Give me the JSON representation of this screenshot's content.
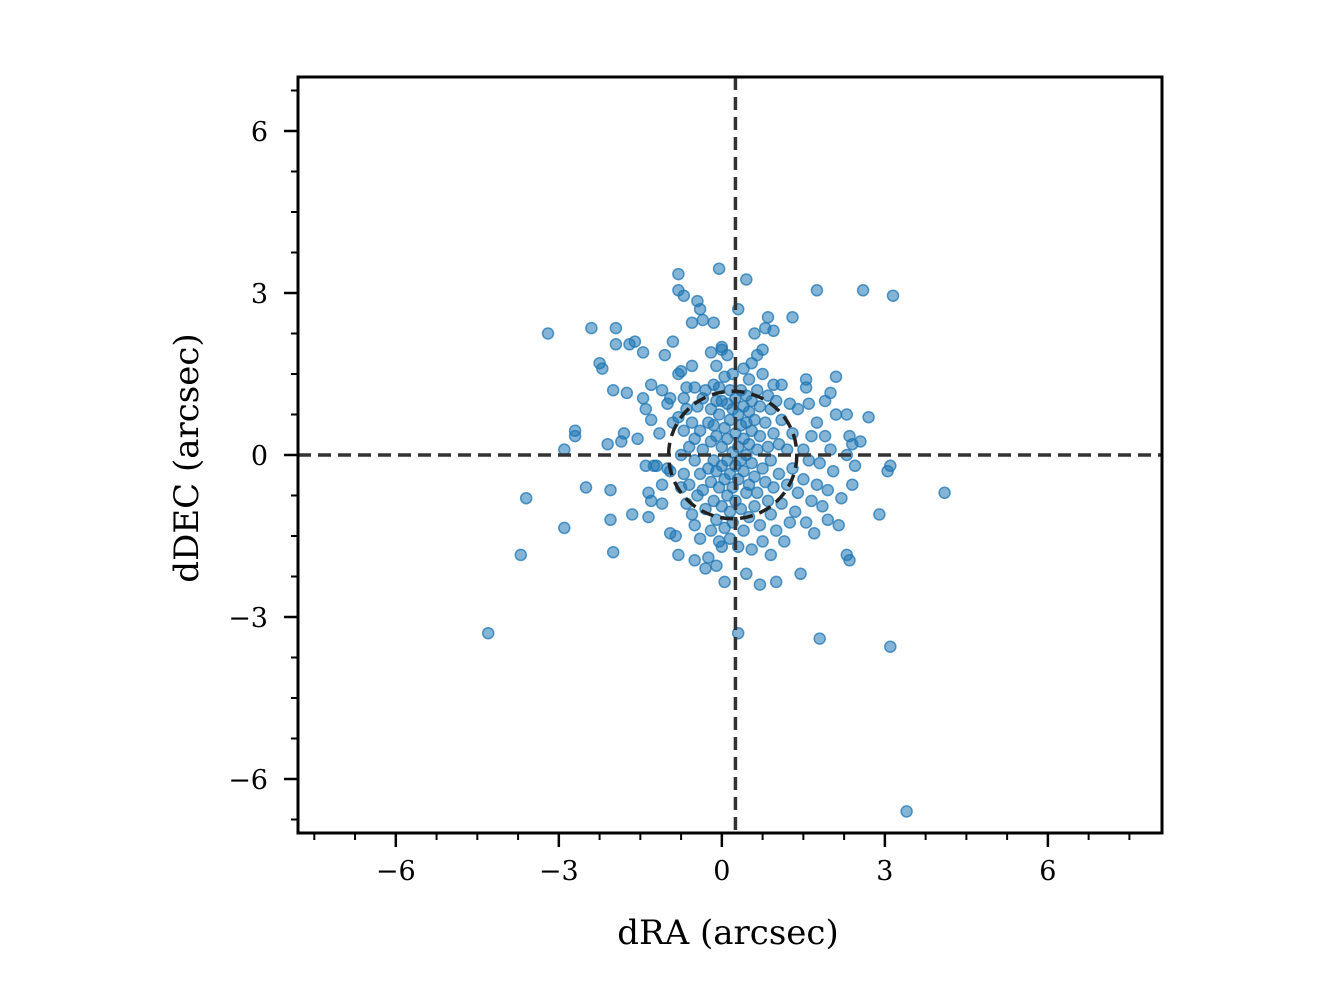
{
  "chart_data": {
    "type": "scatter",
    "xlabel": "dRA (arcsec)",
    "ylabel": "dDEC (arcsec)",
    "xlim": [
      -7.8,
      8.1
    ],
    "ylim": [
      -7.0,
      7.0
    ],
    "x_ticks": [
      -6,
      -3,
      0,
      3,
      6
    ],
    "y_ticks": [
      -6,
      -3,
      0,
      3,
      6
    ],
    "x_tick_labels": [
      "−6",
      "−3",
      "0",
      "3",
      "6"
    ],
    "y_tick_labels": [
      "−6",
      "−3",
      "0",
      "3",
      "6"
    ],
    "minor_tick_step": 0.75,
    "grid": false,
    "marker_color": "#1f77b4",
    "line_color": "#333333",
    "reference_lines": {
      "vertical_x": 0.25,
      "horizontal_y": 0.0
    },
    "circle": {
      "center": [
        0.2,
        0.0
      ],
      "radius": 1.18
    },
    "points": [
      [
        -4.3,
        -3.3
      ],
      [
        3.4,
        -6.6
      ],
      [
        4.1,
        -0.7
      ],
      [
        -3.2,
        2.25
      ],
      [
        -3.6,
        -0.8
      ],
      [
        -3.7,
        -1.85
      ],
      [
        -2.9,
        -1.35
      ],
      [
        -2.9,
        0.1
      ],
      [
        -2.7,
        0.45
      ],
      [
        -2.7,
        0.35
      ],
      [
        -2.4,
        2.35
      ],
      [
        -2.5,
        -0.6
      ],
      [
        -2.25,
        1.7
      ],
      [
        -2.2,
        1.6
      ],
      [
        -2.1,
        0.2
      ],
      [
        -2.05,
        -0.65
      ],
      [
        -2.05,
        -1.2
      ],
      [
        -2.0,
        -1.8
      ],
      [
        -2.0,
        1.2
      ],
      [
        -1.95,
        2.35
      ],
      [
        -1.95,
        2.05
      ],
      [
        -1.85,
        0.25
      ],
      [
        -1.8,
        0.4
      ],
      [
        -1.75,
        1.15
      ],
      [
        -1.7,
        2.05
      ],
      [
        -1.65,
        -1.1
      ],
      [
        -1.6,
        2.1
      ],
      [
        -1.55,
        0.3
      ],
      [
        -1.45,
        1.05
      ],
      [
        -1.45,
        1.9
      ],
      [
        -1.4,
        0.85
      ],
      [
        -1.4,
        -0.2
      ],
      [
        -1.35,
        -0.7
      ],
      [
        -1.35,
        -1.15
      ],
      [
        -1.3,
        1.3
      ],
      [
        -1.3,
        0.65
      ],
      [
        -1.3,
        -0.85
      ],
      [
        -1.25,
        -0.2
      ],
      [
        -1.2,
        -0.2
      ],
      [
        -1.15,
        0.4
      ],
      [
        -1.1,
        -0.55
      ],
      [
        -1.1,
        -0.9
      ],
      [
        -1.1,
        1.2
      ],
      [
        -1.05,
        1.85
      ],
      [
        -1.0,
        0.95
      ],
      [
        -1.0,
        -0.25
      ],
      [
        -0.95,
        1.05
      ],
      [
        -0.95,
        -1.45
      ],
      [
        -0.95,
        -0.3
      ],
      [
        -0.9,
        2.1
      ],
      [
        -0.9,
        0.6
      ],
      [
        -0.85,
        -1.5
      ],
      [
        -0.8,
        3.35
      ],
      [
        -0.8,
        3.05
      ],
      [
        -0.8,
        1.5
      ],
      [
        -0.8,
        0.7
      ],
      [
        -0.8,
        -1.85
      ],
      [
        -0.75,
        1.55
      ],
      [
        -0.75,
        0.0
      ],
      [
        -0.75,
        -0.6
      ],
      [
        -0.7,
        2.95
      ],
      [
        -0.7,
        1.05
      ],
      [
        -0.7,
        0.45
      ],
      [
        -0.7,
        -0.35
      ],
      [
        -0.65,
        1.25
      ],
      [
        -0.65,
        0.85
      ],
      [
        -0.65,
        -0.9
      ],
      [
        -0.6,
        0.15
      ],
      [
        -0.6,
        -0.55
      ],
      [
        -0.55,
        2.45
      ],
      [
        -0.55,
        1.65
      ],
      [
        -0.55,
        0.6
      ],
      [
        -0.55,
        -1.1
      ],
      [
        -0.5,
        1.25
      ],
      [
        -0.5,
        0.3
      ],
      [
        -0.5,
        -0.1
      ],
      [
        -0.5,
        -1.3
      ],
      [
        -0.5,
        -1.95
      ],
      [
        -0.45,
        2.85
      ],
      [
        -0.45,
        0.9
      ],
      [
        -0.45,
        -0.75
      ],
      [
        -0.4,
        2.7
      ],
      [
        -0.4,
        0.45
      ],
      [
        -0.4,
        -0.35
      ],
      [
        -0.4,
        -1.55
      ],
      [
        -0.35,
        2.5
      ],
      [
        -0.35,
        1.05
      ],
      [
        -0.35,
        0.1
      ],
      [
        -0.35,
        -0.65
      ],
      [
        -0.3,
        1.2
      ],
      [
        -0.3,
        -1.0
      ],
      [
        -0.3,
        -2.1
      ],
      [
        -0.25,
        0.6
      ],
      [
        -0.25,
        -0.25
      ],
      [
        -0.25,
        -1.9
      ],
      [
        -0.2,
        1.9
      ],
      [
        -0.2,
        0.85
      ],
      [
        -0.2,
        0.25
      ],
      [
        -0.2,
        -0.5
      ],
      [
        -0.2,
        -1.4
      ],
      [
        -0.15,
        2.45
      ],
      [
        -0.15,
        1.3
      ],
      [
        -0.15,
        0.55
      ],
      [
        -0.15,
        -0.1
      ],
      [
        -0.15,
        -0.85
      ],
      [
        -0.1,
        1.65
      ],
      [
        -0.1,
        1.0
      ],
      [
        -0.1,
        0.35
      ],
      [
        -0.1,
        -0.3
      ],
      [
        -0.1,
        -1.2
      ],
      [
        -0.1,
        -2.05
      ],
      [
        -0.05,
        3.45
      ],
      [
        -0.05,
        1.25
      ],
      [
        -0.05,
        0.75
      ],
      [
        -0.05,
        -0.6
      ],
      [
        -0.05,
        -1.6
      ],
      [
        0.0,
        2.0
      ],
      [
        0.0,
        1.95
      ],
      [
        0.0,
        1.0
      ],
      [
        0.0,
        0.15
      ],
      [
        0.0,
        -0.2
      ],
      [
        0.0,
        -0.95
      ],
      [
        0.0,
        -1.7
      ],
      [
        0.05,
        1.45
      ],
      [
        0.05,
        0.5
      ],
      [
        0.05,
        -0.45
      ],
      [
        0.05,
        -1.35
      ],
      [
        0.05,
        -2.35
      ],
      [
        0.1,
        1.85
      ],
      [
        0.1,
        0.95
      ],
      [
        0.1,
        0.3
      ],
      [
        0.1,
        -0.1
      ],
      [
        0.1,
        -0.75
      ],
      [
        0.15,
        1.2
      ],
      [
        0.15,
        0.65
      ],
      [
        0.15,
        -0.35
      ],
      [
        0.15,
        -1.05
      ],
      [
        0.15,
        -1.55
      ],
      [
        0.2,
        1.5
      ],
      [
        0.2,
        0.85
      ],
      [
        0.2,
        0.05
      ],
      [
        0.2,
        -0.6
      ],
      [
        0.2,
        -1.25
      ],
      [
        0.25,
        1.05
      ],
      [
        0.25,
        0.4
      ],
      [
        0.25,
        -0.2
      ],
      [
        0.25,
        -0.85
      ],
      [
        0.3,
        2.7
      ],
      [
        0.3,
        0.75
      ],
      [
        0.3,
        0.15
      ],
      [
        0.3,
        -0.45
      ],
      [
        0.3,
        -1.7
      ],
      [
        0.3,
        -3.3
      ],
      [
        0.35,
        1.2
      ],
      [
        0.35,
        0.55
      ],
      [
        0.35,
        -0.1
      ],
      [
        0.35,
        -1.0
      ],
      [
        0.4,
        1.6
      ],
      [
        0.4,
        0.9
      ],
      [
        0.4,
        0.3
      ],
      [
        0.4,
        -0.3
      ],
      [
        0.4,
        -1.4
      ],
      [
        0.45,
        3.25
      ],
      [
        0.45,
        1.1
      ],
      [
        0.45,
        0.6
      ],
      [
        0.45,
        0.0
      ],
      [
        0.45,
        -0.7
      ],
      [
        0.45,
        -2.2
      ],
      [
        0.5,
        1.4
      ],
      [
        0.5,
        0.8
      ],
      [
        0.5,
        0.2
      ],
      [
        0.5,
        -0.55
      ],
      [
        0.5,
        -1.15
      ],
      [
        0.55,
        1.7
      ],
      [
        0.55,
        1.0
      ],
      [
        0.55,
        0.45
      ],
      [
        0.55,
        -0.15
      ],
      [
        0.55,
        -1.75
      ],
      [
        0.6,
        2.25
      ],
      [
        0.6,
        0.65
      ],
      [
        0.6,
        -0.4
      ],
      [
        0.6,
        -0.95
      ],
      [
        0.65,
        1.85
      ],
      [
        0.65,
        1.2
      ],
      [
        0.65,
        0.1
      ],
      [
        0.65,
        -0.7
      ],
      [
        0.7,
        0.9
      ],
      [
        0.7,
        0.35
      ],
      [
        0.7,
        -1.3
      ],
      [
        0.7,
        -2.4
      ],
      [
        0.75,
        1.95
      ],
      [
        0.75,
        1.5
      ],
      [
        0.75,
        -0.25
      ],
      [
        0.75,
        -1.6
      ],
      [
        0.8,
        2.35
      ],
      [
        0.8,
        0.6
      ],
      [
        0.8,
        -0.5
      ],
      [
        0.85,
        2.55
      ],
      [
        0.85,
        1.1
      ],
      [
        0.85,
        0.15
      ],
      [
        0.85,
        -0.85
      ],
      [
        0.9,
        0.85
      ],
      [
        0.9,
        -0.1
      ],
      [
        0.9,
        -1.1
      ],
      [
        0.9,
        -1.85
      ],
      [
        0.95,
        2.3
      ],
      [
        0.95,
        1.3
      ],
      [
        0.95,
        0.4
      ],
      [
        0.95,
        -0.6
      ],
      [
        1.0,
        1.0
      ],
      [
        1.0,
        -1.4
      ],
      [
        1.0,
        -2.35
      ],
      [
        1.05,
        0.2
      ],
      [
        1.05,
        -0.35
      ],
      [
        1.1,
        1.3
      ],
      [
        1.1,
        0.65
      ],
      [
        1.1,
        -0.9
      ],
      [
        1.15,
        -1.6
      ],
      [
        1.2,
        0.1
      ],
      [
        1.2,
        -0.55
      ],
      [
        1.25,
        0.95
      ],
      [
        1.25,
        -1.25
      ],
      [
        1.3,
        2.55
      ],
      [
        1.3,
        0.4
      ],
      [
        1.3,
        -0.25
      ],
      [
        1.35,
        -1.05
      ],
      [
        1.4,
        0.85
      ],
      [
        1.4,
        -0.7
      ],
      [
        1.45,
        -2.2
      ],
      [
        1.5,
        0.1
      ],
      [
        1.5,
        -0.45
      ],
      [
        1.55,
        1.4
      ],
      [
        1.55,
        1.25
      ],
      [
        1.55,
        -1.25
      ],
      [
        1.6,
        0.95
      ],
      [
        1.6,
        -0.1
      ],
      [
        1.65,
        0.35
      ],
      [
        1.65,
        -0.85
      ],
      [
        1.7,
        -1.45
      ],
      [
        1.75,
        3.05
      ],
      [
        1.75,
        0.6
      ],
      [
        1.75,
        -0.55
      ],
      [
        1.8,
        -3.4
      ],
      [
        1.8,
        -0.15
      ],
      [
        1.85,
        -0.95
      ],
      [
        1.9,
        1.0
      ],
      [
        1.9,
        0.35
      ],
      [
        1.95,
        -0.65
      ],
      [
        1.95,
        -1.2
      ],
      [
        2.0,
        1.15
      ],
      [
        2.0,
        0.1
      ],
      [
        2.05,
        -0.3
      ],
      [
        2.1,
        1.45
      ],
      [
        2.1,
        0.75
      ],
      [
        2.15,
        -1.3
      ],
      [
        2.2,
        -0.8
      ],
      [
        2.3,
        0.75
      ],
      [
        2.3,
        0.0
      ],
      [
        2.3,
        -1.85
      ],
      [
        2.35,
        -1.95
      ],
      [
        2.35,
        0.35
      ],
      [
        2.4,
        0.2
      ],
      [
        2.4,
        -0.55
      ],
      [
        2.45,
        -0.2
      ],
      [
        2.55,
        0.25
      ],
      [
        2.6,
        3.05
      ],
      [
        2.7,
        0.7
      ],
      [
        2.9,
        -1.1
      ],
      [
        3.05,
        -0.3
      ],
      [
        3.1,
        -0.2
      ],
      [
        3.1,
        -3.55
      ],
      [
        3.15,
        2.95
      ]
    ]
  }
}
